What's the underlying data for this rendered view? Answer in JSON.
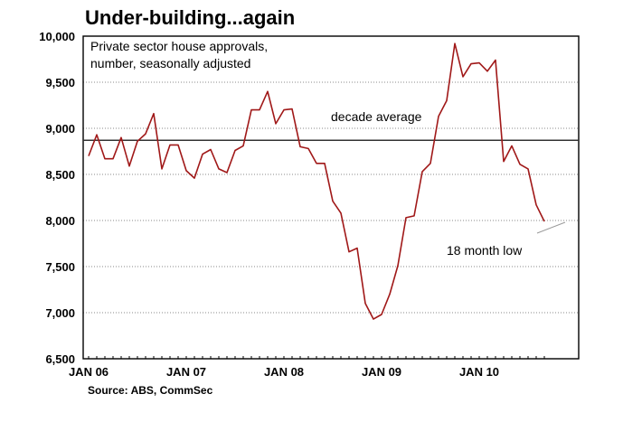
{
  "chart_data": {
    "type": "line",
    "title": "Under-building...again",
    "subtitle_lines": [
      "Private sector house approvals,",
      "number, seasonally adjusted"
    ],
    "source": "Source: ABS, CommSec",
    "xlabel": "",
    "ylabel": "",
    "ylim": [
      6500,
      10000
    ],
    "y_ticks": [
      6500,
      7000,
      7500,
      8000,
      8500,
      9000,
      9500,
      10000
    ],
    "y_tick_labels": [
      "6,500",
      "7,000",
      "7,500",
      "8,000",
      "8,500",
      "9,000",
      "9,500",
      "10,000"
    ],
    "x_tick_labels": [
      "JAN 06",
      "JAN 07",
      "JAN 08",
      "JAN 09",
      "JAN 10"
    ],
    "x_tick_index": [
      0,
      12,
      24,
      36,
      48
    ],
    "grid": true,
    "series": [
      {
        "color": "#a01818",
        "values": [
          8700,
          8930,
          8670,
          8670,
          8900,
          8590,
          8860,
          8940,
          9160,
          8560,
          8820,
          8820,
          8540,
          8460,
          8720,
          8770,
          8560,
          8520,
          8760,
          8810,
          9200,
          9200,
          9400,
          9050,
          9200,
          9210,
          8800,
          8780,
          8620,
          8620,
          8210,
          8080,
          7660,
          7700,
          7100,
          6930,
          6980,
          7200,
          7510,
          8030,
          8050,
          8530,
          8620,
          9130,
          9300,
          9920,
          9560,
          9700,
          9710,
          9620,
          9740,
          8640,
          8810,
          8610,
          8560,
          8170,
          7990
        ]
      },
      {
        "name": "decade average",
        "color": "#333333",
        "values": [
          8870
        ]
      }
    ],
    "annotations": [
      {
        "text": "decade average"
      },
      {
        "text": "18 month low"
      }
    ]
  }
}
